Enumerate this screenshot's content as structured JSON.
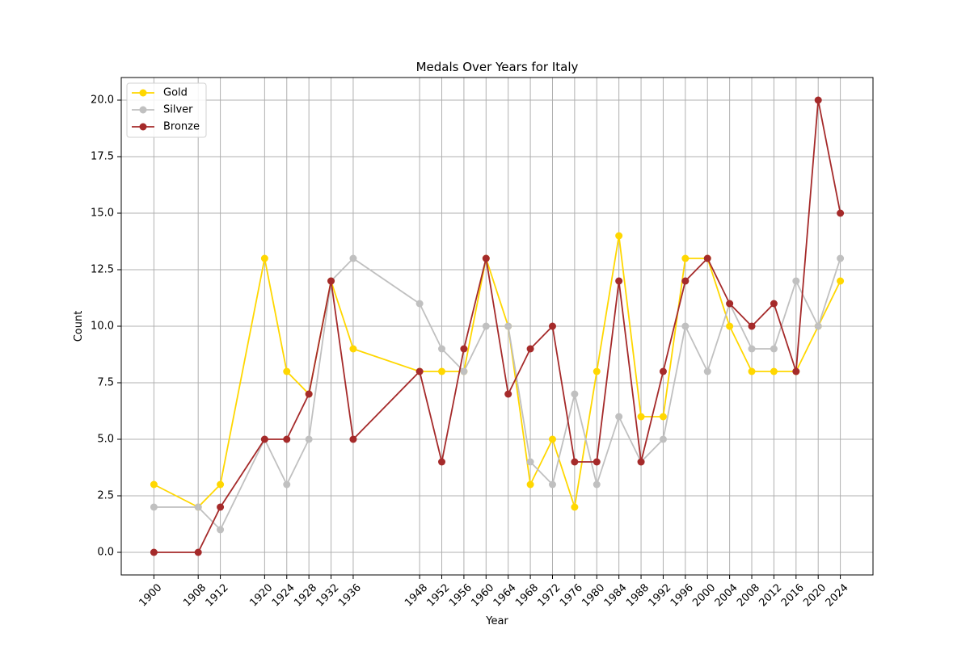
{
  "chart_data": {
    "type": "line",
    "title": "Medals Over Years for Italy",
    "xlabel": "Year",
    "ylabel": "Count",
    "x": [
      1900,
      1908,
      1912,
      1920,
      1924,
      1928,
      1932,
      1936,
      1948,
      1952,
      1956,
      1960,
      1964,
      1968,
      1972,
      1976,
      1980,
      1984,
      1988,
      1992,
      1996,
      2000,
      2004,
      2008,
      2012,
      2016,
      2020,
      2024
    ],
    "ylim": [
      -1,
      21
    ],
    "yticks": [
      "0.0",
      "2.5",
      "5.0",
      "7.5",
      "10.0",
      "12.5",
      "15.0",
      "17.5",
      "20.0"
    ],
    "grid": true,
    "legend_position": "upper-left",
    "series": [
      {
        "name": "Gold",
        "color": "#ffd700",
        "values": [
          3,
          2,
          3,
          13,
          8,
          7,
          12,
          9,
          8,
          8,
          8,
          13,
          10,
          3,
          5,
          2,
          8,
          14,
          6,
          6,
          13,
          13,
          10,
          8,
          8,
          8,
          10,
          12
        ]
      },
      {
        "name": "Silver",
        "color": "#c0c0c0",
        "values": [
          2,
          2,
          1,
          5,
          3,
          5,
          12,
          13,
          11,
          9,
          8,
          10,
          10,
          4,
          3,
          7,
          3,
          6,
          4,
          5,
          10,
          8,
          11,
          9,
          9,
          12,
          10,
          13
        ]
      },
      {
        "name": "Bronze",
        "color": "#a52a2a",
        "values": [
          0,
          0,
          2,
          5,
          5,
          7,
          12,
          5,
          8,
          4,
          9,
          13,
          7,
          9,
          10,
          4,
          4,
          12,
          4,
          8,
          12,
          13,
          11,
          10,
          11,
          8,
          20,
          15
        ]
      }
    ]
  }
}
